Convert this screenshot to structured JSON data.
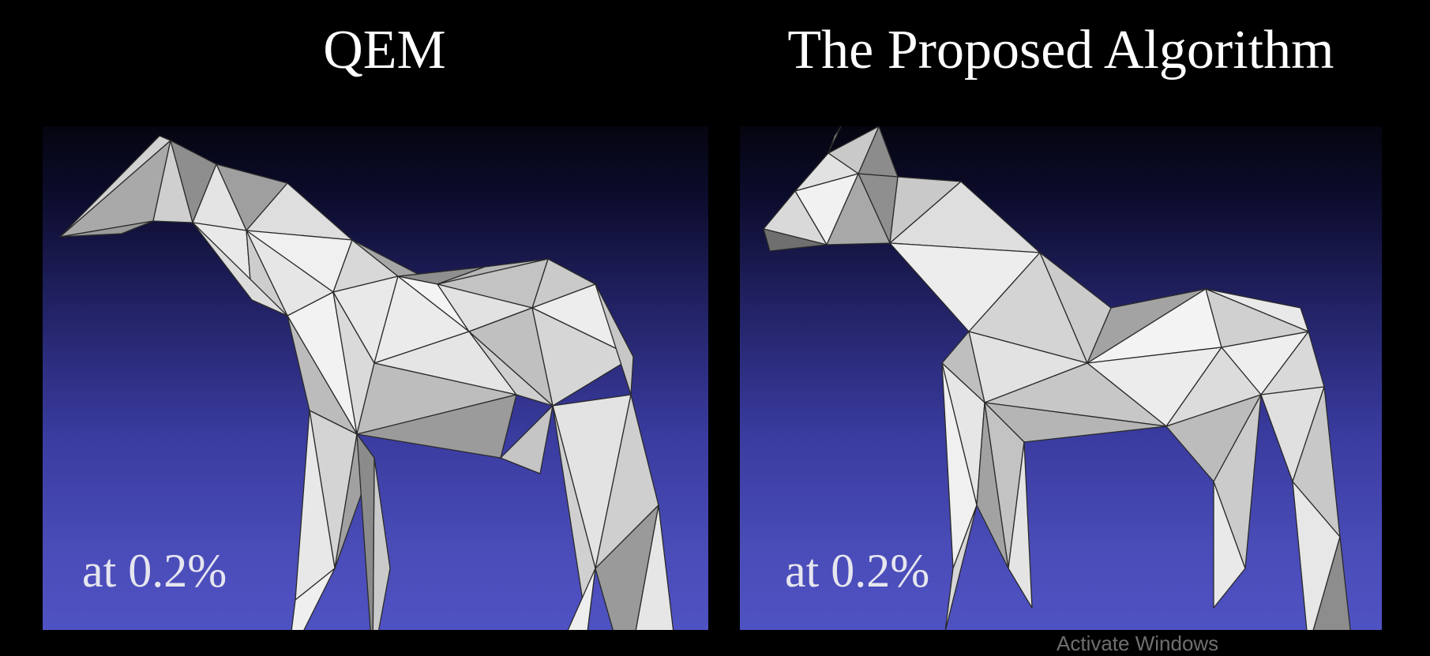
{
  "left": {
    "title": "QEM",
    "caption": "at 0.2%"
  },
  "right": {
    "title": "The Proposed Algorithm",
    "caption": "at 0.2%"
  },
  "watermark": "Activate Windows",
  "colors": {
    "background": "#000000",
    "panel_top": "#050510",
    "panel_bottom": "#4f52c2",
    "mesh_light": "#eeeeee",
    "mesh_mid": "#c4c4c4",
    "mesh_dark": "#8c8c8c",
    "mesh_edge": "#2a2a2a"
  },
  "icons": [
    "low-poly-horse-mesh-qem",
    "low-poly-horse-mesh-proposed"
  ]
}
